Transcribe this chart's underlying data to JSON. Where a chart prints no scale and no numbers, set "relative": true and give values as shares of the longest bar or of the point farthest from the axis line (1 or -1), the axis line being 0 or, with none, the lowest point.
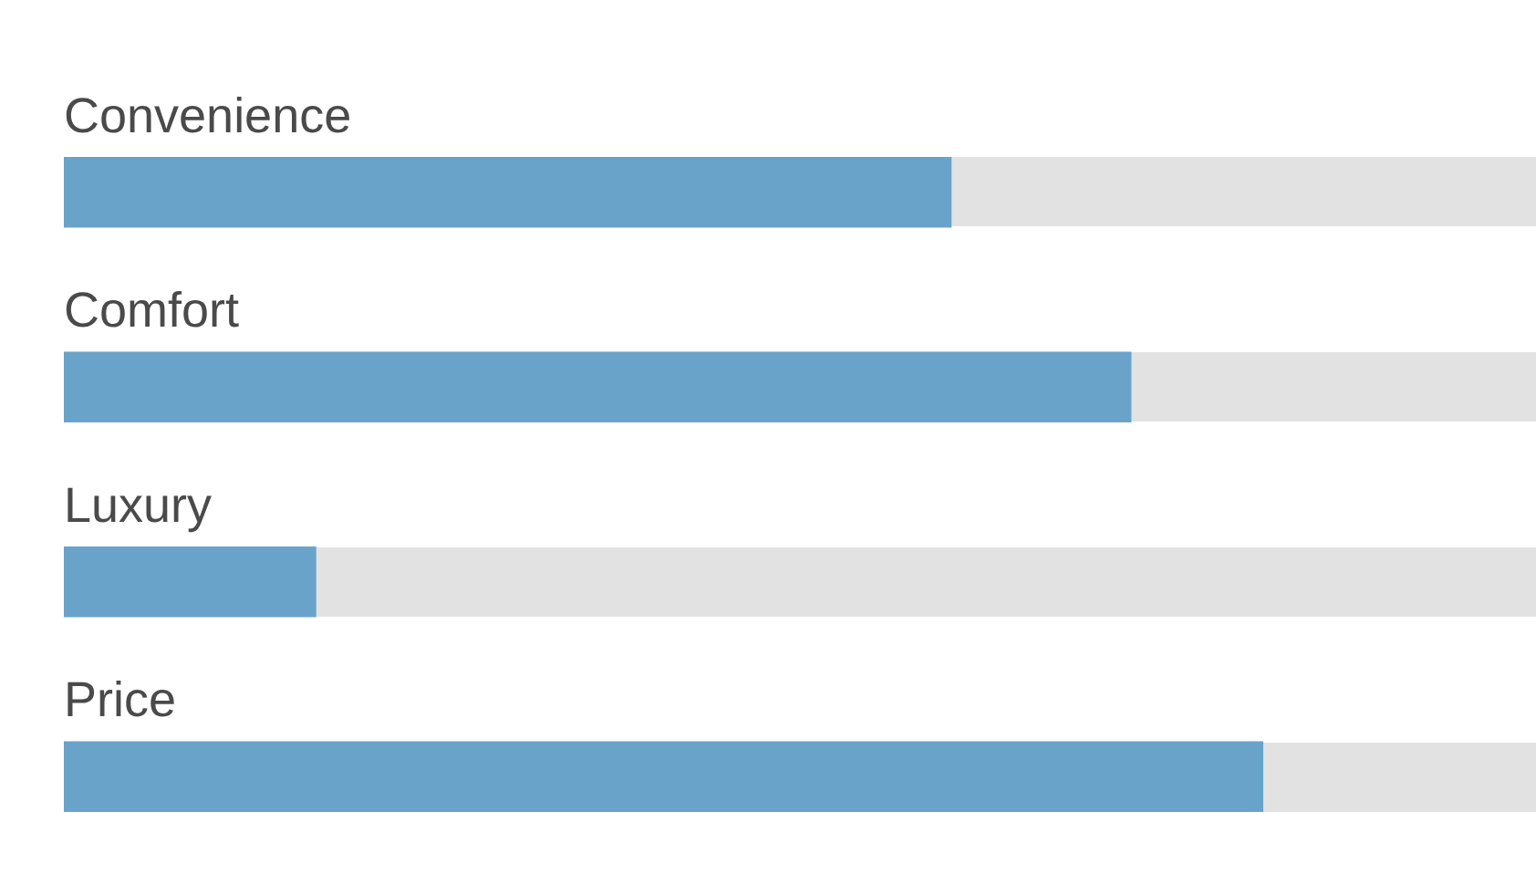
{
  "chart_data": {
    "type": "bar",
    "orientation": "horizontal",
    "relative": true,
    "categories": [
      "Convenience",
      "Comfort",
      "Luxury",
      "Price"
    ],
    "values": [
      0.74,
      0.89,
      0.21,
      1
    ],
    "color": "#6aa3c9"
  }
}
